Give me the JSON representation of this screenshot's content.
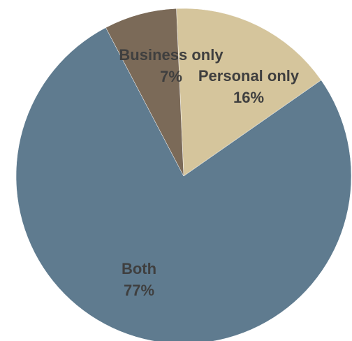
{
  "chart_data": {
    "type": "pie",
    "title": "",
    "slices": [
      {
        "label": "Personal only",
        "value": 16,
        "value_label": "16%",
        "color": "#d5c59c"
      },
      {
        "label": "Both",
        "value": 77,
        "value_label": "77%",
        "color": "#5f7b8f"
      },
      {
        "label": "Business only",
        "value": 7,
        "value_label": "7%",
        "color": "#7b6a58"
      }
    ],
    "start_angle_deg": 357.5,
    "direction": "clockwise",
    "legend": "none",
    "data_labels": "inside"
  }
}
